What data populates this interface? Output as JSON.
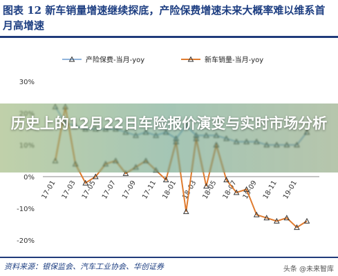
{
  "title": "图表 12 新车销量增速继续探底，产险保费增速未来大概率难以维系首月高增速",
  "source": "资料来源：银保监会、汽车工业协会、华创证券",
  "watermark": "头条 @未来智库",
  "overlay_text": "历史上的12月22日车险报价演变与实时市场分析",
  "colors": {
    "premium": "#8fb4dc",
    "sales": "#e07b2e",
    "accent": "#1e3f82"
  },
  "chart_data": {
    "type": "line",
    "x": [
      "17-01",
      "17-02",
      "17-03",
      "17-04",
      "17-05",
      "17-06",
      "17-07",
      "17-08",
      "17-09",
      "17-10",
      "17-11",
      "17-12",
      "18-01",
      "18-02",
      "18-03",
      "18-04",
      "18-05",
      "18-06",
      "18-07",
      "18-08",
      "18-09",
      "18-10",
      "18-11",
      "18-12",
      "19-01",
      "19-02"
    ],
    "tick_labels": [
      "17-01",
      "17-03",
      "17-05",
      "17-07",
      "17-09",
      "17-11",
      "18-01",
      "18-03",
      "18-05",
      "18-07",
      "18-09",
      "18-11",
      "19-01"
    ],
    "y_ticks": [
      "30%",
      "20%",
      "10%",
      "0%",
      "-10%",
      "-20%"
    ],
    "ylim": [
      -20,
      30
    ],
    "grid": false,
    "legend": "top",
    "series": [
      {
        "name": "产险保费-当月-yoy",
        "values": [
          22,
          17,
          16,
          15,
          15,
          15,
          15,
          14,
          13,
          14,
          13,
          14,
          12,
          16,
          13,
          13,
          13,
          12,
          11,
          11,
          11,
          10,
          10,
          10,
          10,
          14
        ]
      },
      {
        "name": "新车销量-当月-yoy",
        "values": [
          5,
          22,
          4,
          -2,
          0,
          4,
          5,
          1,
          3,
          5,
          2,
          -1,
          11,
          -11,
          12,
          -3,
          10,
          -1,
          -5,
          -4,
          -12,
          -13,
          -14,
          -13,
          -16,
          -14
        ]
      }
    ]
  }
}
